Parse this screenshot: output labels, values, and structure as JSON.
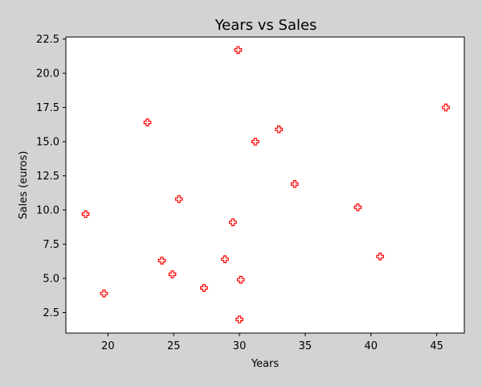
{
  "chart_data": {
    "type": "scatter",
    "title": "Years vs Sales",
    "xlabel": "Years",
    "ylabel": "Sales (euros)",
    "xlim": [
      16.8,
      47.1
    ],
    "ylim": [
      1.0,
      22.65
    ],
    "xticks": [
      20,
      25,
      30,
      35,
      40,
      45
    ],
    "yticks": [
      2.5,
      5.0,
      7.5,
      10.0,
      12.5,
      15.0,
      17.5,
      20.0,
      22.5
    ],
    "xtick_labels": [
      "20",
      "25",
      "30",
      "35",
      "40",
      "45"
    ],
    "ytick_labels": [
      "2.5",
      "5.0",
      "7.5",
      "10.0",
      "12.5",
      "15.0",
      "17.5",
      "20.0",
      "22.5"
    ],
    "grid": false,
    "marker": "plus",
    "colors": {
      "marker": "#ff0000",
      "background": "#d3d3d3",
      "plot_area": "#ffffff"
    },
    "points": [
      {
        "x": 18.3,
        "y": 9.7
      },
      {
        "x": 19.7,
        "y": 3.9
      },
      {
        "x": 23.0,
        "y": 16.4
      },
      {
        "x": 24.1,
        "y": 6.3
      },
      {
        "x": 24.9,
        "y": 5.3
      },
      {
        "x": 25.4,
        "y": 10.8
      },
      {
        "x": 27.3,
        "y": 4.3
      },
      {
        "x": 28.9,
        "y": 6.4
      },
      {
        "x": 29.5,
        "y": 9.1
      },
      {
        "x": 29.9,
        "y": 21.7
      },
      {
        "x": 30.0,
        "y": 2.0
      },
      {
        "x": 30.1,
        "y": 4.9
      },
      {
        "x": 31.2,
        "y": 15.0
      },
      {
        "x": 33.0,
        "y": 15.9
      },
      {
        "x": 34.2,
        "y": 11.9
      },
      {
        "x": 39.0,
        "y": 10.2
      },
      {
        "x": 40.7,
        "y": 6.6
      },
      {
        "x": 45.7,
        "y": 17.5
      }
    ]
  }
}
